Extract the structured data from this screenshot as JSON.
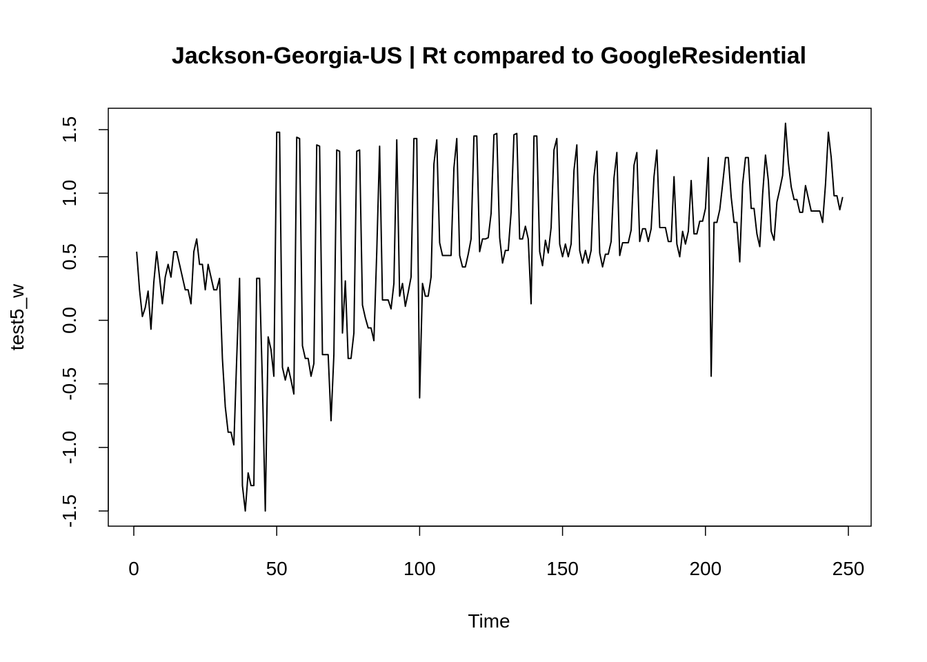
{
  "chart_data": {
    "type": "line",
    "title": "Jackson-Georgia-US | Rt compared to GoogleResidential",
    "xlabel": "Time",
    "ylabel": "test5_w",
    "xlim": [
      1,
      248
    ],
    "ylim": [
      -1.5,
      1.55
    ],
    "xticks": [
      0,
      50,
      100,
      150,
      200,
      250
    ],
    "xtick_labels": [
      "0",
      "50",
      "100",
      "150",
      "200",
      "250"
    ],
    "yticks": [
      -1.5,
      -1.0,
      -0.5,
      0.0,
      0.5,
      1.0,
      1.5
    ],
    "ytick_labels": [
      "-1.5",
      "-1.0",
      "-0.5",
      "0.0",
      "0.5",
      "1.0",
      "1.5"
    ],
    "grid": false,
    "line_color": "#000000",
    "series": [
      {
        "x": [
          1,
          2,
          3,
          4,
          5,
          6,
          7,
          8,
          9,
          10,
          11,
          12,
          13,
          14,
          15,
          16,
          17,
          18,
          19,
          20,
          21,
          22,
          23,
          24,
          25,
          26,
          27,
          28,
          29,
          30,
          31,
          32,
          33,
          34,
          35,
          36,
          37,
          38,
          39,
          40,
          41,
          42,
          43,
          44,
          45,
          46,
          47,
          48,
          49,
          50,
          51,
          52,
          53,
          54,
          55,
          56,
          57,
          58,
          59,
          60,
          61,
          62,
          63,
          64,
          65,
          66,
          67,
          68,
          69,
          70,
          71,
          72,
          73,
          74,
          75,
          76,
          77,
          78,
          79,
          80,
          81,
          82,
          83,
          84,
          85,
          86,
          87,
          88,
          89,
          90,
          91,
          92,
          93,
          94,
          95,
          96,
          97,
          98,
          99,
          100,
          101,
          102,
          103,
          104,
          105,
          106,
          107,
          108,
          109,
          110,
          111,
          112,
          113,
          114,
          115,
          116,
          117,
          118,
          119,
          120,
          121,
          122,
          123,
          124,
          125,
          126,
          127,
          128,
          129,
          130,
          131,
          132,
          133,
          134,
          135,
          136,
          137,
          138,
          139,
          140,
          141,
          142,
          143,
          144,
          145,
          146,
          147,
          148,
          149,
          150,
          151,
          152,
          153,
          154,
          155,
          156,
          157,
          158,
          159,
          160,
          161,
          162,
          163,
          164,
          165,
          166,
          167,
          168,
          169,
          170,
          171,
          172,
          173,
          174,
          175,
          176,
          177,
          178,
          179,
          180,
          181,
          182,
          183,
          184,
          185,
          186,
          187,
          188,
          189,
          190,
          191,
          192,
          193,
          194,
          195,
          196,
          197,
          198,
          199,
          200,
          201,
          202,
          203,
          204,
          205,
          206,
          207,
          208,
          209,
          210,
          211,
          212,
          213,
          214,
          215,
          216,
          217,
          218,
          219,
          220,
          221,
          222,
          223,
          224,
          225,
          226,
          227,
          228,
          229,
          230,
          231,
          232,
          233,
          234,
          235,
          236,
          237,
          238,
          239,
          240,
          241,
          242,
          243,
          244,
          245,
          246,
          247,
          248
        ],
        "values": [
          0.54,
          0.24,
          0.03,
          0.1,
          0.23,
          -0.07,
          0.3,
          0.54,
          0.34,
          0.13,
          0.34,
          0.44,
          0.34,
          0.54,
          0.54,
          0.44,
          0.34,
          0.24,
          0.24,
          0.13,
          0.54,
          0.64,
          0.44,
          0.44,
          0.24,
          0.44,
          0.34,
          0.24,
          0.24,
          0.33,
          -0.3,
          -0.68,
          -0.88,
          -0.88,
          -0.98,
          -0.3,
          0.33,
          -1.3,
          -1.5,
          -1.2,
          -1.3,
          -1.3,
          0.33,
          0.33,
          -0.5,
          -1.5,
          -0.13,
          -0.23,
          -0.44,
          1.48,
          1.48,
          -0.37,
          -0.47,
          -0.37,
          -0.47,
          -0.58,
          1.44,
          1.43,
          -0.2,
          -0.3,
          -0.3,
          -0.44,
          -0.34,
          1.38,
          1.37,
          -0.27,
          -0.27,
          -0.27,
          -0.79,
          -0.27,
          1.34,
          1.33,
          -0.1,
          0.31,
          -0.3,
          -0.3,
          -0.1,
          1.33,
          1.34,
          0.12,
          0.02,
          -0.06,
          -0.06,
          -0.16,
          0.54,
          1.37,
          0.16,
          0.16,
          0.16,
          0.09,
          0.29,
          1.42,
          0.19,
          0.29,
          0.11,
          0.22,
          0.34,
          1.43,
          1.43,
          -0.61,
          0.29,
          0.19,
          0.19,
          0.34,
          1.23,
          1.42,
          0.61,
          0.51,
          0.51,
          0.51,
          0.51,
          1.2,
          1.43,
          0.51,
          0.42,
          0.42,
          0.52,
          0.64,
          1.45,
          1.45,
          0.54,
          0.64,
          0.64,
          0.65,
          0.84,
          1.46,
          1.47,
          0.65,
          0.45,
          0.55,
          0.55,
          0.85,
          1.46,
          1.47,
          0.64,
          0.64,
          0.74,
          0.64,
          0.13,
          1.45,
          1.45,
          0.54,
          0.43,
          0.63,
          0.53,
          0.73,
          1.34,
          1.43,
          0.6,
          0.5,
          0.6,
          0.5,
          0.6,
          1.18,
          1.38,
          0.55,
          0.45,
          0.55,
          0.45,
          0.55,
          1.13,
          1.33,
          0.53,
          0.42,
          0.52,
          0.52,
          0.62,
          1.12,
          1.32,
          0.51,
          0.61,
          0.61,
          0.61,
          0.71,
          1.22,
          1.32,
          0.62,
          0.72,
          0.72,
          0.62,
          0.72,
          1.13,
          1.34,
          0.73,
          0.73,
          0.73,
          0.62,
          0.62,
          1.13,
          0.6,
          0.5,
          0.7,
          0.6,
          0.7,
          1.1,
          0.68,
          0.68,
          0.78,
          0.78,
          0.88,
          1.28,
          -0.44,
          0.77,
          0.77,
          0.87,
          1.07,
          1.28,
          1.28,
          0.97,
          0.77,
          0.77,
          0.46,
          1.07,
          1.28,
          1.28,
          0.88,
          0.88,
          0.68,
          0.58,
          0.99,
          1.3,
          1.1,
          0.7,
          0.63,
          0.93,
          1.03,
          1.14,
          1.55,
          1.24,
          1.05,
          0.95,
          0.95,
          0.85,
          0.85,
          1.06,
          0.96,
          0.86,
          0.86,
          0.86,
          0.86,
          0.77,
          1.07,
          1.48,
          1.28,
          0.98,
          0.98,
          0.87,
          0.97
        ]
      }
    ]
  }
}
